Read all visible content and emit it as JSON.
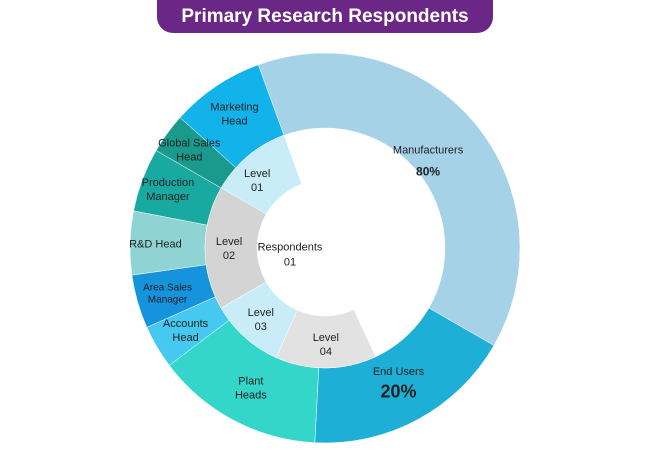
{
  "chart_data": {
    "type": "sunburst",
    "title": "Primary Research Respondents",
    "center": {
      "label_lines": [
        "Respondents",
        "01"
      ]
    },
    "outer_ring": [
      {
        "label_lines": [
          "Manufacturers"
        ],
        "value_label": "80%",
        "color": "#a6d2e8"
      },
      {
        "label_lines": [
          "End Users"
        ],
        "value_label": "20%",
        "color": "#1eafd6"
      },
      {
        "label_lines": [
          "Plant",
          "Heads"
        ],
        "color": "#33d6c8"
      },
      {
        "label_lines": [
          "Accounts",
          "Head"
        ],
        "color": "#45c9f0"
      },
      {
        "label_lines": [
          "Area Sales",
          "Manager"
        ],
        "color": "#1593dd"
      },
      {
        "label_lines": [
          "R&D Head"
        ],
        "color": "#8fd3d3"
      },
      {
        "label_lines": [
          "Production",
          "Manager"
        ],
        "color": "#18a9a1"
      },
      {
        "label_lines": [
          "Global Sales",
          "Head"
        ],
        "color": "#1a9a8d"
      },
      {
        "label_lines": [
          "Marketing",
          "Head"
        ],
        "color": "#12b2ea"
      }
    ],
    "inner_ring": [
      {
        "label_lines": [
          "Level",
          "01"
        ],
        "color": "#c8ecf8"
      },
      {
        "label_lines": [
          "Level",
          "02"
        ],
        "color": "#d4d4d4"
      },
      {
        "label_lines": [
          "Level",
          "03"
        ],
        "color": "#c8ecf8"
      },
      {
        "label_lines": [
          "Level",
          "04"
        ],
        "color": "#e2e2e2"
      }
    ]
  }
}
